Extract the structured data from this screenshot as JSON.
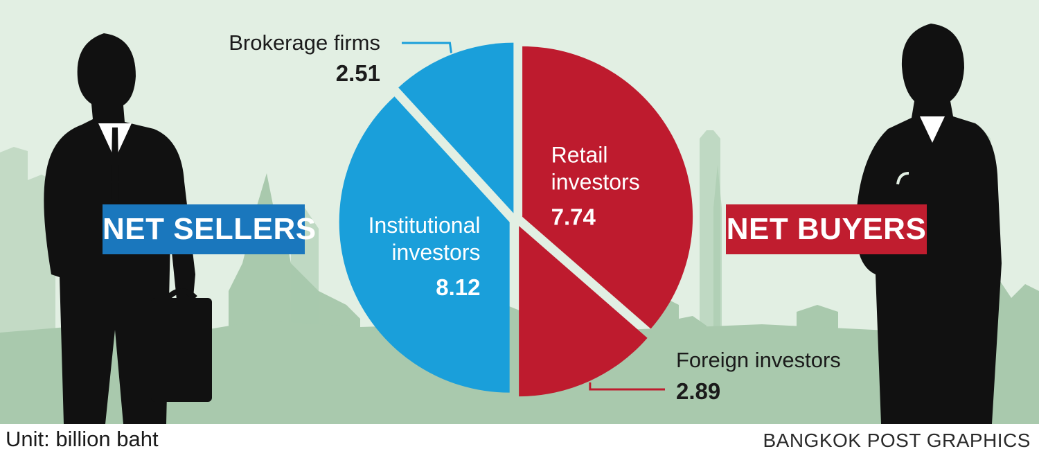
{
  "chart_data": {
    "type": "pie",
    "unit": "billion baht",
    "groups": [
      {
        "name": "NET SELLERS",
        "color": "#1a9fda"
      },
      {
        "name": "NET BUYERS",
        "color": "#be1b2e"
      }
    ],
    "slices": [
      {
        "label_lines": [
          "Retail",
          "investors"
        ],
        "label": "Retail investors",
        "value": 7.74,
        "group": "NET BUYERS",
        "color": "#be1b2e",
        "label_style": "inside"
      },
      {
        "label_lines": [
          "Foreign investors"
        ],
        "label": "Foreign investors",
        "value": 2.89,
        "group": "NET BUYERS",
        "color": "#be1b2e",
        "label_style": "callout-bottom-right"
      },
      {
        "label_lines": [
          "Institutional",
          "investors"
        ],
        "label": "Institutional investors",
        "value": 8.12,
        "group": "NET SELLERS",
        "color": "#1a9fda",
        "label_style": "inside"
      },
      {
        "label_lines": [
          "Brokerage firms"
        ],
        "label": "Brokerage firms",
        "value": 2.51,
        "group": "NET SELLERS",
        "color": "#1a9fda",
        "label_style": "callout-top-left"
      }
    ]
  },
  "badges": {
    "sellers": "NET SELLERS",
    "buyers": "NET BUYERS"
  },
  "footer": {
    "unit_text": "Unit: billion baht",
    "credit": "BANGKOK POST GRAPHICS"
  },
  "colors": {
    "background": "#e2efe3",
    "skyline": "#a9c9ad",
    "silhouette": "#111111",
    "sellers_blue": "#1a9fda",
    "buyers_red": "#be1b2e"
  }
}
